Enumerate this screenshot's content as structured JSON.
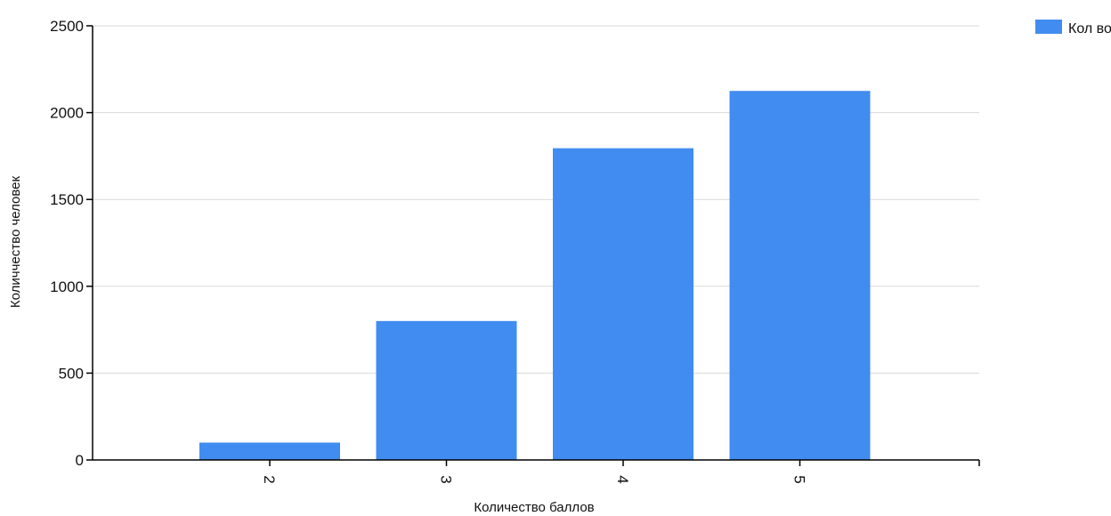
{
  "chart_data": {
    "type": "bar",
    "categories": [
      "2",
      "3",
      "4",
      "5"
    ],
    "series": [
      {
        "name": "Кол во",
        "values": [
          100,
          800,
          1795,
          2125
        ],
        "color": "#418cf0"
      }
    ],
    "xlabel": "Количество баллов",
    "ylabel": "Количчество человек",
    "ylim": [
      0,
      2500
    ],
    "yticks": [
      "0",
      "500",
      "1000",
      "1500",
      "2000",
      "2500"
    ],
    "grid": true,
    "legend_position": "top-right"
  }
}
